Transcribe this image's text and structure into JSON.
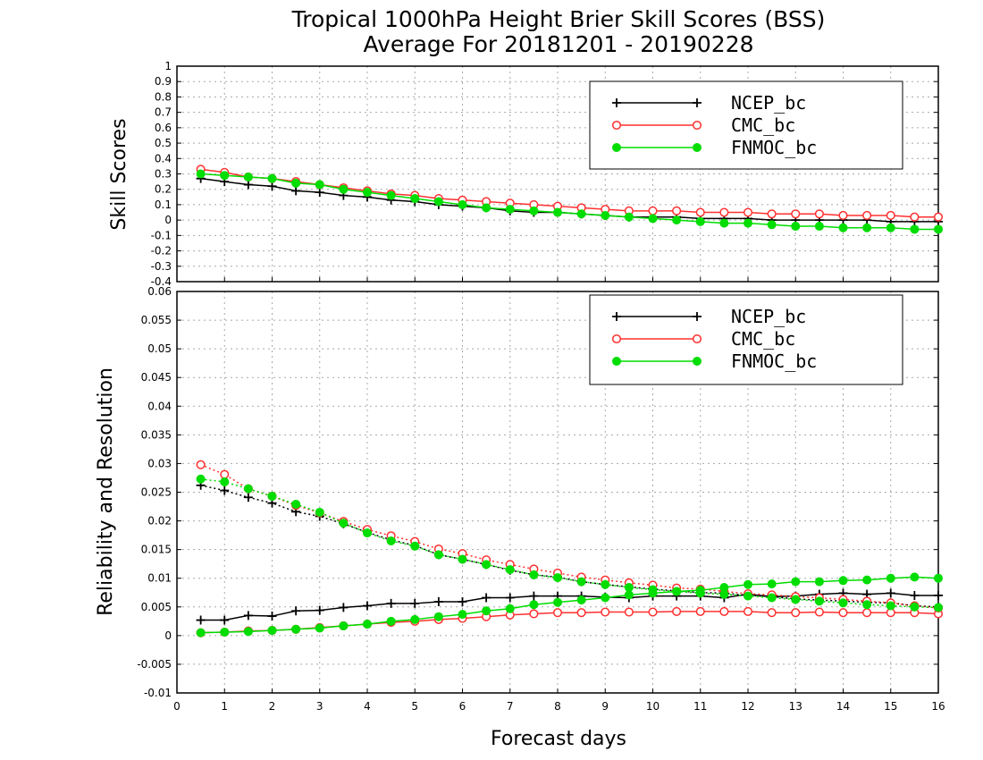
{
  "chart_data": [
    {
      "type": "line",
      "title": "Tropical 1000hPa Height Brier Skill Scores (BSS)",
      "subtitle": "Average For 20181201 - 20190228",
      "ylabel": "Skill Scores",
      "xlim": [
        0,
        16
      ],
      "ylim": [
        -0.4,
        1
      ],
      "yticks": [
        "1",
        "0.9",
        "0.8",
        "0.7",
        "0.6",
        "0.5",
        "0.4",
        "0.3",
        "0.2",
        "0.1",
        "0",
        "-0.1",
        "-0.2",
        "-0.3",
        "-0.4"
      ],
      "grid": true,
      "legend": "top-right",
      "x": [
        0.5,
        1,
        1.5,
        2,
        2.5,
        3,
        3.5,
        4,
        4.5,
        5,
        5.5,
        6,
        6.5,
        7,
        7.5,
        8,
        8.5,
        9,
        9.5,
        10,
        10.5,
        11,
        11.5,
        12,
        12.5,
        13,
        13.5,
        14,
        14.5,
        15,
        15.5,
        16
      ],
      "series": [
        {
          "name": "NCEP_bc",
          "color": "#000000",
          "marker": "plus",
          "style": "solid",
          "values": [
            0.27,
            0.25,
            0.23,
            0.22,
            0.19,
            0.18,
            0.16,
            0.15,
            0.13,
            0.12,
            0.1,
            0.09,
            0.08,
            0.06,
            0.05,
            0.05,
            0.04,
            0.03,
            0.02,
            0.02,
            0.02,
            0.01,
            0.01,
            0.01,
            0.0,
            0.0,
            0.0,
            0.0,
            0.0,
            -0.01,
            -0.01,
            -0.01
          ]
        },
        {
          "name": "CMC_bc",
          "color": "#ff3030",
          "marker": "open-circle",
          "style": "solid",
          "values": [
            0.33,
            0.31,
            0.28,
            0.27,
            0.25,
            0.23,
            0.21,
            0.19,
            0.17,
            0.16,
            0.14,
            0.13,
            0.12,
            0.11,
            0.1,
            0.09,
            0.08,
            0.07,
            0.06,
            0.06,
            0.06,
            0.05,
            0.05,
            0.05,
            0.04,
            0.04,
            0.04,
            0.03,
            0.03,
            0.03,
            0.02,
            0.02
          ]
        },
        {
          "name": "FNMOC_bc",
          "color": "#00dd00",
          "marker": "filled-circle",
          "style": "solid",
          "values": [
            0.3,
            0.29,
            0.28,
            0.27,
            0.24,
            0.23,
            0.2,
            0.18,
            0.16,
            0.14,
            0.12,
            0.1,
            0.08,
            0.07,
            0.06,
            0.05,
            0.04,
            0.03,
            0.02,
            0.01,
            0.0,
            -0.01,
            -0.02,
            -0.02,
            -0.03,
            -0.04,
            -0.04,
            -0.05,
            -0.05,
            -0.05,
            -0.06,
            -0.06
          ]
        }
      ]
    },
    {
      "type": "line",
      "ylabel": "Reliability and Resolution",
      "xlabel": "Forecast days",
      "xlim": [
        0,
        16
      ],
      "ylim": [
        -0.01,
        0.06
      ],
      "yticks": [
        "0.06",
        "0.055",
        "0.05",
        "0.045",
        "0.04",
        "0.035",
        "0.03",
        "0.025",
        "0.02",
        "0.015",
        "0.01",
        "0.005",
        "0",
        "-0.005",
        "-0.01"
      ],
      "xticks": [
        "0",
        "1",
        "2",
        "3",
        "4",
        "5",
        "6",
        "7",
        "8",
        "9",
        "10",
        "11",
        "12",
        "13",
        "14",
        "15",
        "16"
      ],
      "grid": true,
      "legend": "top-right",
      "x": [
        0.5,
        1,
        1.5,
        2,
        2.5,
        3,
        3.5,
        4,
        4.5,
        5,
        5.5,
        6,
        6.5,
        7,
        7.5,
        8,
        8.5,
        9,
        9.5,
        10,
        10.5,
        11,
        11.5,
        12,
        12.5,
        13,
        13.5,
        14,
        14.5,
        15,
        15.5,
        16
      ],
      "series": [
        {
          "name": "NCEP_bc",
          "color": "#000000",
          "marker": "plus",
          "style": "solid",
          "values": [
            0.0027,
            0.0027,
            0.0035,
            0.0034,
            0.0043,
            0.0044,
            0.0049,
            0.0052,
            0.0056,
            0.0056,
            0.0059,
            0.0059,
            0.0066,
            0.0066,
            0.0069,
            0.0069,
            0.0069,
            0.0067,
            0.0066,
            0.0069,
            0.0069,
            0.0069,
            0.0066,
            0.0072,
            0.0068,
            0.0069,
            0.0072,
            0.0074,
            0.0072,
            0.0074,
            0.007,
            0.007
          ]
        },
        {
          "name": "NCEP_bc",
          "color": "#000000",
          "marker": "plus",
          "style": "dotted",
          "values": [
            0.0262,
            0.0253,
            0.0241,
            0.0231,
            0.0216,
            0.0208,
            0.0195,
            0.018,
            0.0167,
            0.0157,
            0.0141,
            0.0133,
            0.0124,
            0.0114,
            0.0106,
            0.0102,
            0.0094,
            0.0089,
            0.0085,
            0.0081,
            0.0078,
            0.0075,
            0.0074,
            0.007,
            0.0068,
            0.0064,
            0.0062,
            0.006,
            0.0058,
            0.0057,
            0.0052,
            0.005
          ]
        },
        {
          "name": "CMC_bc",
          "color": "#ff3030",
          "marker": "open-circle",
          "style": "solid",
          "values": [
            0.0005,
            0.0006,
            0.0008,
            0.0009,
            0.0011,
            0.0014,
            0.0017,
            0.002,
            0.0023,
            0.0025,
            0.0028,
            0.003,
            0.0033,
            0.0036,
            0.0038,
            0.004,
            0.004,
            0.0041,
            0.0041,
            0.0041,
            0.0042,
            0.0042,
            0.0042,
            0.0042,
            0.004,
            0.004,
            0.0041,
            0.004,
            0.004,
            0.004,
            0.004,
            0.0038
          ]
        },
        {
          "name": "CMC_bc",
          "color": "#ff3030",
          "marker": "open-circle",
          "style": "dotted",
          "values": [
            0.0298,
            0.0281,
            0.0256,
            0.0243,
            0.0227,
            0.0214,
            0.0199,
            0.0185,
            0.0174,
            0.0164,
            0.0151,
            0.0143,
            0.0132,
            0.0124,
            0.0116,
            0.0109,
            0.0102,
            0.0097,
            0.0092,
            0.0088,
            0.0083,
            0.0081,
            0.0077,
            0.0073,
            0.0071,
            0.0068,
            0.0066,
            0.0063,
            0.006,
            0.0057,
            0.0052,
            0.0048
          ]
        },
        {
          "name": "FNMOC_bc",
          "color": "#00dd00",
          "marker": "filled-circle",
          "style": "solid",
          "values": [
            0.0005,
            0.0006,
            0.0007,
            0.0009,
            0.0011,
            0.0013,
            0.0017,
            0.002,
            0.0025,
            0.0028,
            0.0033,
            0.0037,
            0.0043,
            0.0047,
            0.0054,
            0.0058,
            0.0062,
            0.0066,
            0.0071,
            0.0074,
            0.0077,
            0.0079,
            0.0084,
            0.0089,
            0.009,
            0.0094,
            0.0094,
            0.0096,
            0.0097,
            0.01,
            0.0102,
            0.01
          ]
        },
        {
          "name": "FNMOC_bc",
          "color": "#00dd00",
          "marker": "filled-circle",
          "style": "dotted",
          "values": [
            0.0273,
            0.0268,
            0.0256,
            0.0243,
            0.0229,
            0.0215,
            0.0196,
            0.0179,
            0.0165,
            0.0156,
            0.0141,
            0.0133,
            0.0124,
            0.0115,
            0.0106,
            0.0101,
            0.0094,
            0.0089,
            0.0084,
            0.008,
            0.0077,
            0.0074,
            0.0072,
            0.0069,
            0.0066,
            0.0063,
            0.006,
            0.0057,
            0.0054,
            0.0052,
            0.005,
            0.0049
          ]
        }
      ]
    }
  ]
}
